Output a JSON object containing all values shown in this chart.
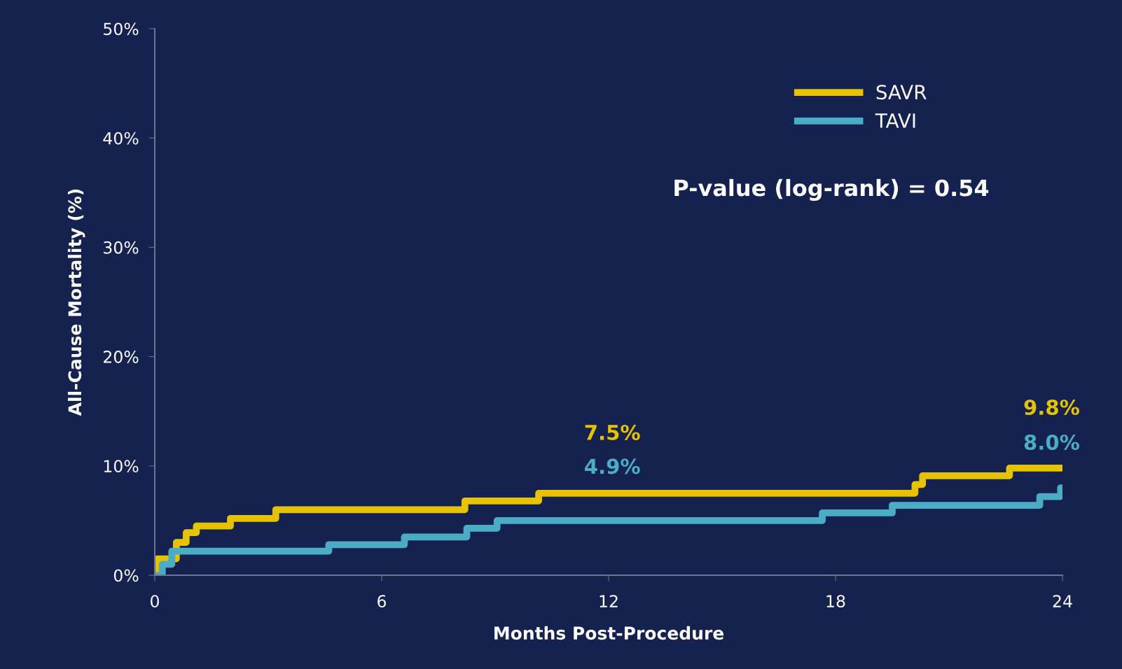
{
  "chart_data": {
    "type": "step",
    "xlabel": "Months Post-Procedure",
    "ylabel": "All-Cause Mortality (%)",
    "xlim": [
      0,
      24
    ],
    "xticks": [
      0,
      6,
      12,
      18,
      24
    ],
    "ylim": [
      0,
      50
    ],
    "yticks": [
      {
        "value": 0,
        "label": "0%"
      },
      {
        "value": 10,
        "label": "10%"
      },
      {
        "value": 20,
        "label": "20%"
      },
      {
        "value": 30,
        "label": "30%"
      },
      {
        "value": 40,
        "label": "40%"
      },
      {
        "value": 50,
        "label": "50%"
      }
    ],
    "series": [
      {
        "name": "SAVR",
        "color": "#e6c200",
        "x": [
          0,
          0.05,
          0.57,
          0.83,
          1.1,
          2.0,
          3.2,
          8.2,
          10.15,
          20.1,
          20.3,
          22.6,
          24
        ],
        "values": [
          0,
          1.5,
          3.0,
          3.9,
          4.5,
          5.2,
          6.0,
          6.8,
          7.5,
          8.3,
          9.1,
          9.8,
          9.8
        ]
      },
      {
        "name": "TAVI",
        "color": "#4bacc6",
        "x": [
          0,
          0.2,
          0.45,
          4.6,
          6.6,
          8.25,
          9.05,
          17.65,
          19.5,
          23.4,
          23.95,
          24
        ],
        "values": [
          0,
          1.0,
          2.2,
          2.8,
          3.5,
          4.3,
          5.0,
          5.7,
          6.4,
          7.2,
          8.0,
          8.0
        ]
      }
    ],
    "annotations": [
      "7.5%",
      "4.9%",
      "9.8%",
      "8.0%",
      "P-value (log-rank) = 0.54"
    ],
    "legend": "top right",
    "grid": false,
    "marker": "none",
    "line_style": "solid"
  }
}
